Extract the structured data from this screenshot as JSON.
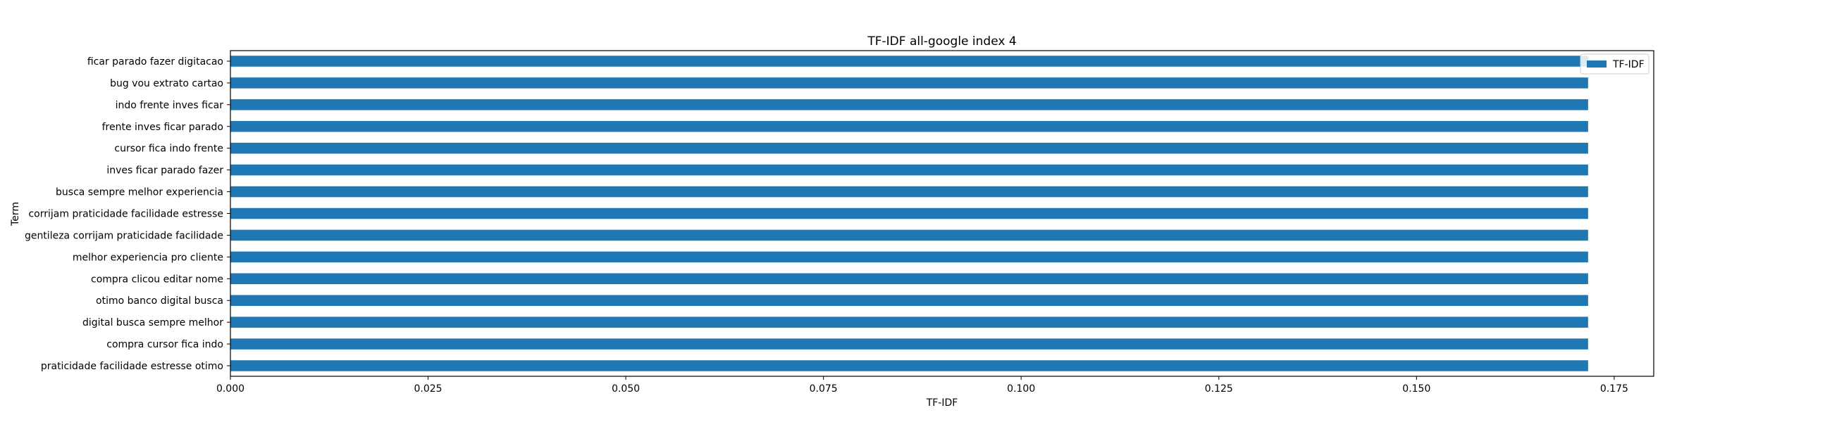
{
  "chart_data": {
    "type": "bar",
    "orientation": "horizontal",
    "title": "TF-IDF all-google index 4",
    "xlabel": "TF-IDF",
    "ylabel": "Term",
    "xlim": [
      0,
      0.18
    ],
    "xticks": [
      0.0,
      0.025,
      0.05,
      0.075,
      0.1,
      0.125,
      0.15,
      0.175
    ],
    "xtick_labels": [
      "0.000",
      "0.025",
      "0.050",
      "0.075",
      "0.100",
      "0.125",
      "0.150",
      "0.175"
    ],
    "grid": false,
    "legend": {
      "placement": "top-right",
      "entries": [
        "TF-IDF"
      ]
    },
    "categories": [
      "ficar parado fazer digitacao",
      "bug vou extrato cartao",
      "indo frente inves ficar",
      "frente inves ficar parado",
      "cursor fica indo frente",
      "inves ficar parado fazer",
      "busca sempre melhor experiencia",
      "corrijam praticidade facilidade estresse",
      "gentileza corrijam praticidade facilidade",
      "melhor experiencia pro cliente",
      "compra clicou editar nome",
      "otimo banco digital busca",
      "digital busca sempre melhor",
      "compra cursor fica indo",
      "praticidade facilidade estresse otimo"
    ],
    "series": [
      {
        "name": "TF-IDF",
        "color": "#1f77b4",
        "values": [
          0.1717,
          0.1717,
          0.1717,
          0.1717,
          0.1717,
          0.1717,
          0.1717,
          0.1717,
          0.1717,
          0.1717,
          0.1717,
          0.1717,
          0.1717,
          0.1717,
          0.1717
        ]
      }
    ]
  }
}
